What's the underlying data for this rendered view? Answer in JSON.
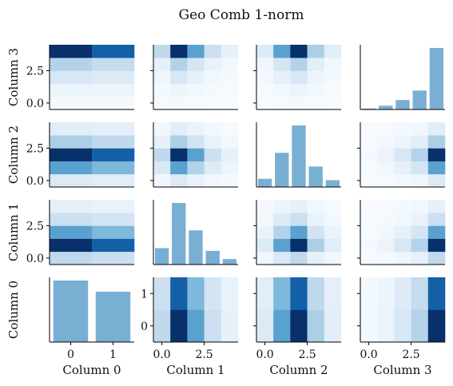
{
  "chart_data": {
    "type": "pairplot",
    "title": "Geo Comb 1-norm",
    "variables": [
      "Column 0",
      "Column 1",
      "Column 2",
      "Column 3"
    ],
    "levels": [
      [
        0,
        1
      ],
      [
        0,
        1,
        2,
        3,
        4
      ],
      [
        0,
        1,
        2,
        3,
        4
      ],
      [
        0,
        1,
        2,
        3,
        4
      ]
    ],
    "ticks": [
      [
        0,
        1
      ],
      [
        0,
        2.5
      ],
      [
        0,
        2.5
      ],
      [
        0,
        2.5
      ]
    ],
    "tick_labels": [
      [
        "0",
        "1"
      ],
      [
        "0.0",
        "2.5"
      ],
      [
        "0.0",
        "2.5"
      ],
      [
        "0.0",
        "2.5"
      ]
    ],
    "marginals": [
      [
        0.55,
        0.45
      ],
      [
        0.12,
        0.45,
        0.25,
        0.1,
        0.04
      ],
      [
        0.06,
        0.25,
        0.45,
        0.15,
        0.05
      ],
      [
        0.01,
        0.04,
        0.1,
        0.2,
        0.65
      ]
    ],
    "colors": {
      "hist": "#7aafd4",
      "heat_low": "#f7fbff",
      "heat_high": "#08306b",
      "axis": "#000000"
    }
  }
}
